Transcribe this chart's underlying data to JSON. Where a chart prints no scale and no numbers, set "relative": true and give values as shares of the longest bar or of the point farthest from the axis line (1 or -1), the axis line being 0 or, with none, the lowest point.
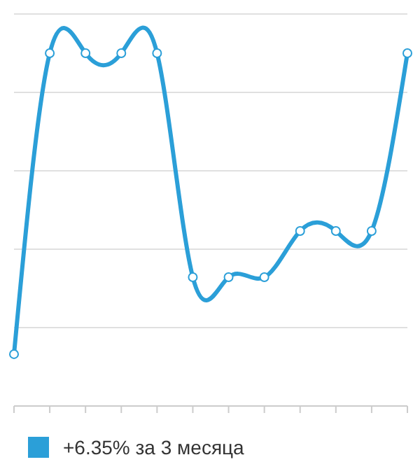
{
  "chart_data": {
    "type": "line",
    "relative": true,
    "categories": [
      null,
      null,
      null,
      null,
      null,
      null,
      null,
      null,
      null,
      null,
      null,
      null
    ],
    "series": [
      {
        "name": "+6.35% за 3 месяца",
        "color": "#2b9fd8",
        "values": [
          0.147,
          1,
          1,
          1,
          1,
          0.365,
          0.365,
          0.365,
          0.496,
          0.496,
          0.496,
          1
        ]
      }
    ],
    "grid": true,
    "legend": "bottom",
    "marker": "circle"
  }
}
